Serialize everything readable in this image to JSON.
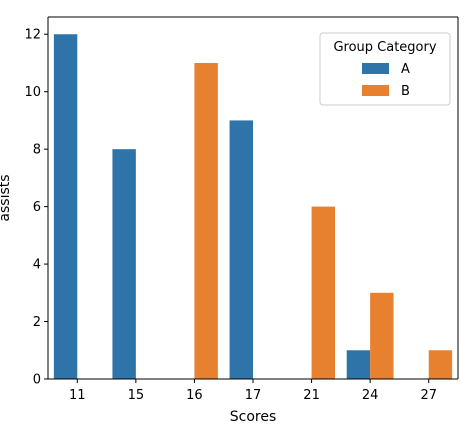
{
  "chart_data": {
    "type": "bar",
    "title": "",
    "xlabel": "Scores",
    "ylabel": "assists",
    "categories": [
      "11",
      "15",
      "16",
      "17",
      "21",
      "24",
      "27"
    ],
    "ylim": [
      0,
      12.6
    ],
    "yticks": [
      0,
      2,
      4,
      6,
      8,
      10,
      12
    ],
    "grid": false,
    "legend": {
      "title": "Group Category",
      "placement": "top-right"
    },
    "series": [
      {
        "name": "A",
        "color": "#2f74a8",
        "values": [
          12,
          8,
          0,
          9,
          0,
          1,
          0
        ]
      },
      {
        "name": "B",
        "color": "#e8812f",
        "values": [
          0,
          0,
          11,
          0,
          6,
          3,
          1
        ]
      }
    ]
  }
}
